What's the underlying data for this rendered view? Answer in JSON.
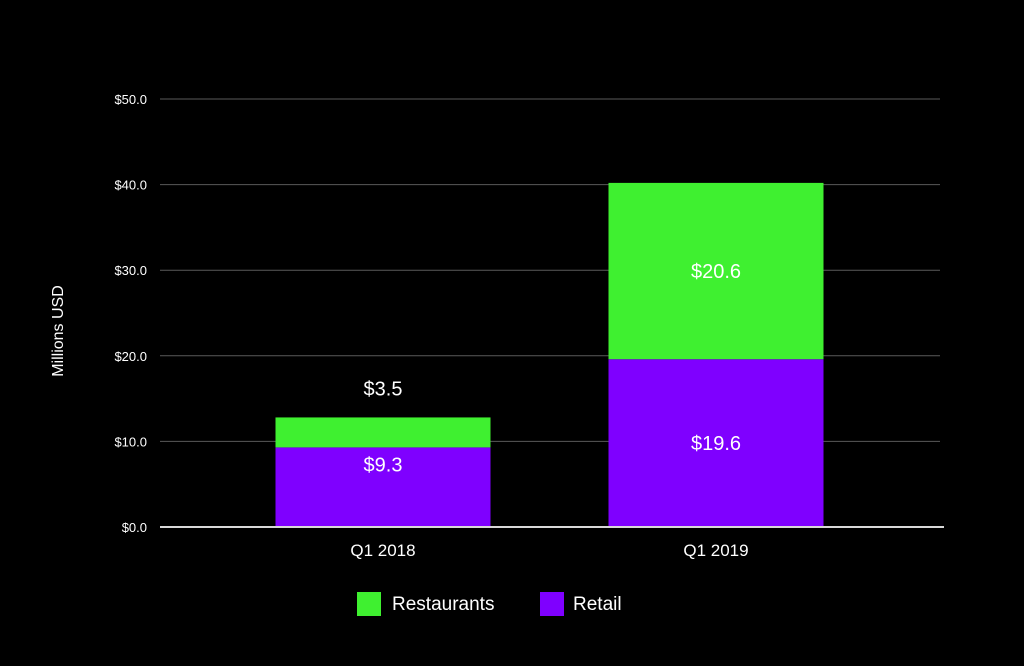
{
  "chart_data": {
    "type": "bar",
    "stacked": true,
    "title": "",
    "xlabel": "",
    "ylabel": "Millions USD",
    "ylim": [
      0,
      50
    ],
    "yticks": [
      0,
      10,
      20,
      30,
      40,
      50
    ],
    "ytick_labels": [
      "$0.0",
      "$10.0",
      "$20.0",
      "$30.0",
      "$40.0",
      "$50.0"
    ],
    "grid": true,
    "categories": [
      "Q1 2018",
      "Q1 2019"
    ],
    "series": [
      {
        "name": "Retail",
        "color": "#7f00ff",
        "values": [
          9.3,
          19.6
        ],
        "labels": [
          "$9.3",
          "$19.6"
        ]
      },
      {
        "name": "Restaurants",
        "color": "#3ff030",
        "values": [
          3.5,
          20.6
        ],
        "labels": [
          "$3.5",
          "$20.6"
        ]
      }
    ],
    "legend": {
      "placement": "bottom-center",
      "order": [
        "Restaurants",
        "Retail"
      ]
    },
    "colors": {
      "background": "#000000",
      "text": "#ffffff",
      "grid": "#5a5a5a",
      "baseline": "#d8d8d8"
    }
  }
}
